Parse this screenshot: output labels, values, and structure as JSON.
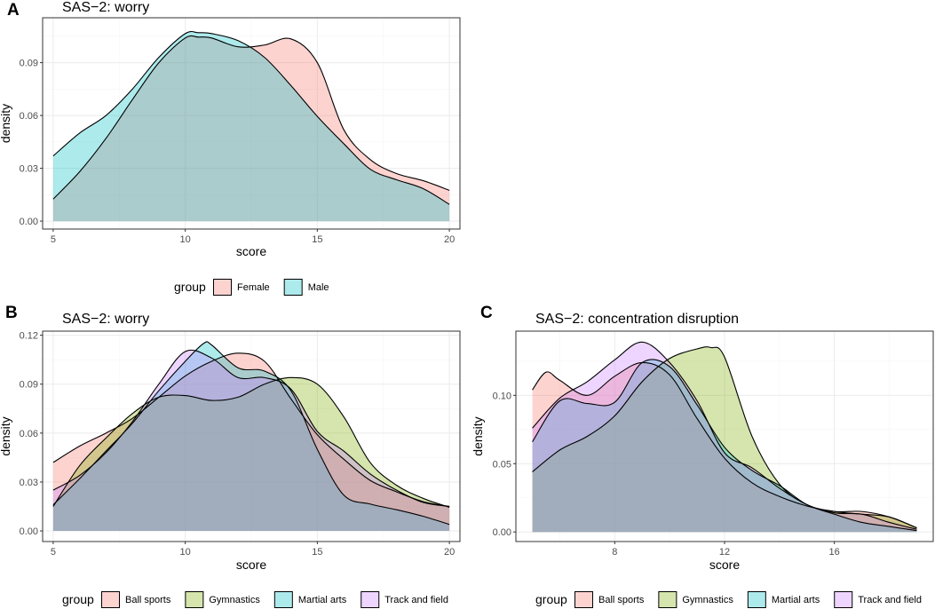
{
  "chart_data": [
    {
      "id": "A",
      "panel_label": "A",
      "type": "area",
      "subtype": "density",
      "title": "SAS−2: worry",
      "xlabel": "score",
      "ylabel": "density",
      "xlim": [
        4.6,
        20.4
      ],
      "ylim": [
        -0.0045,
        0.1155
      ],
      "xticks": [
        5,
        10,
        15,
        20
      ],
      "xtick_labels": [
        "5",
        "10",
        "15",
        "20"
      ],
      "yticks": [
        0,
        0.03,
        0.06,
        0.09
      ],
      "ytick_labels": [
        "0.00",
        "0.03",
        "0.06",
        "0.09"
      ],
      "legend": {
        "title": "group",
        "position": "bottom"
      },
      "series": [
        {
          "name": "Female",
          "color": "#f8766d",
          "x": [
            5,
            6,
            7,
            8,
            9,
            10,
            10.5,
            11,
            12,
            13,
            14,
            15,
            16,
            17,
            18,
            19,
            20
          ],
          "y": [
            0.0125,
            0.028,
            0.047,
            0.069,
            0.09,
            0.104,
            0.1045,
            0.104,
            0.099,
            0.1,
            0.1035,
            0.09,
            0.052,
            0.035,
            0.027,
            0.023,
            0.0175
          ]
        },
        {
          "name": "Male",
          "color": "#00bfc4",
          "x": [
            5,
            6,
            7,
            8,
            9,
            10,
            10.5,
            11,
            12,
            13,
            14,
            15,
            16,
            17,
            18,
            19,
            20
          ],
          "y": [
            0.037,
            0.05,
            0.06,
            0.075,
            0.093,
            0.1065,
            0.107,
            0.1065,
            0.1025,
            0.093,
            0.077,
            0.0595,
            0.044,
            0.0295,
            0.0235,
            0.0185,
            0.0095
          ]
        }
      ]
    },
    {
      "id": "B",
      "panel_label": "B",
      "type": "area",
      "subtype": "density",
      "title": "SAS−2: worry",
      "xlabel": "score",
      "ylabel": "density",
      "xlim": [
        4.6,
        20.4
      ],
      "ylim": [
        -0.0065,
        0.1225
      ],
      "xticks": [
        5,
        10,
        15,
        20
      ],
      "xtick_labels": [
        "5",
        "10",
        "15",
        "20"
      ],
      "yticks": [
        0,
        0.03,
        0.06,
        0.09,
        0.12
      ],
      "ytick_labels": [
        "0.00",
        "0.03",
        "0.06",
        "0.09",
        "0.12"
      ],
      "legend": {
        "title": "group",
        "position": "bottom"
      },
      "series": [
        {
          "name": "Ball sports",
          "color": "#f8766d",
          "x": [
            5,
            6,
            7,
            8,
            9,
            10,
            11,
            12,
            13,
            14,
            15,
            16,
            17,
            18,
            19,
            20
          ],
          "y": [
            0.042,
            0.052,
            0.06,
            0.069,
            0.082,
            0.095,
            0.104,
            0.109,
            0.104,
            0.081,
            0.059,
            0.044,
            0.031,
            0.024,
            0.018,
            0.015
          ]
        },
        {
          "name": "Gymnastics",
          "color": "#7cae00",
          "x": [
            5,
            6,
            7,
            8,
            9,
            10,
            11,
            12,
            13,
            14,
            15,
            16,
            17,
            18,
            19,
            20
          ],
          "y": [
            0.015,
            0.04,
            0.057,
            0.072,
            0.082,
            0.083,
            0.08,
            0.082,
            0.09,
            0.094,
            0.09,
            0.07,
            0.042,
            0.028,
            0.02,
            0.0145
          ]
        },
        {
          "name": "Martial arts",
          "color": "#00bfc4",
          "x": [
            5,
            6,
            7,
            8,
            9,
            10,
            10.7,
            11,
            12,
            13,
            14,
            15,
            16,
            17,
            18,
            19,
            20
          ],
          "y": [
            0.016,
            0.032,
            0.049,
            0.066,
            0.086,
            0.104,
            0.115,
            0.114,
            0.1,
            0.098,
            0.086,
            0.05,
            0.022,
            0.0165,
            0.013,
            0.009,
            0.004
          ]
        },
        {
          "name": "Track and field",
          "color": "#c77cff",
          "x": [
            5,
            6,
            7,
            8,
            9,
            10,
            11,
            12,
            13,
            14,
            15,
            16,
            17,
            18,
            19,
            20
          ],
          "y": [
            0.025,
            0.034,
            0.048,
            0.067,
            0.09,
            0.11,
            0.106,
            0.094,
            0.094,
            0.087,
            0.061,
            0.049,
            0.035,
            0.025,
            0.0175,
            0.015
          ]
        }
      ]
    },
    {
      "id": "C",
      "panel_label": "C",
      "type": "area",
      "subtype": "density",
      "title": "SAS−2: concentration disruption",
      "xlabel": "score",
      "ylabel": "density",
      "xlim": [
        4.4,
        19.6
      ],
      "ylim": [
        -0.007,
        0.147
      ],
      "xticks": [
        8,
        12,
        16
      ],
      "xtick_labels": [
        "8",
        "12",
        "16"
      ],
      "yticks": [
        0,
        0.05,
        0.1
      ],
      "ytick_labels": [
        "0.00",
        "0.05",
        "0.10"
      ],
      "legend": {
        "title": "group",
        "position": "bottom"
      },
      "series": [
        {
          "name": "Ball sports",
          "color": "#f8766d",
          "x": [
            5,
            5.5,
            6,
            7,
            8,
            9,
            10,
            11,
            12,
            13,
            14,
            15,
            16,
            17,
            18,
            19
          ],
          "y": [
            0.104,
            0.117,
            0.111,
            0.1,
            0.114,
            0.124,
            0.115,
            0.083,
            0.054,
            0.036,
            0.026,
            0.019,
            0.015,
            0.015,
            0.011,
            0.003
          ]
        },
        {
          "name": "Gymnastics",
          "color": "#7cae00",
          "x": [
            5,
            6,
            7,
            8,
            9,
            10,
            11,
            11.5,
            12,
            13,
            14,
            15,
            16,
            17,
            18,
            19
          ],
          "y": [
            0.044,
            0.06,
            0.07,
            0.085,
            0.11,
            0.127,
            0.134,
            0.135,
            0.128,
            0.07,
            0.035,
            0.02,
            0.015,
            0.013,
            0.011,
            0.003
          ]
        },
        {
          "name": "Martial arts",
          "color": "#00bfc4",
          "x": [
            5,
            6,
            7,
            8,
            9,
            10,
            11,
            12,
            13,
            14,
            15,
            16,
            17,
            18,
            19
          ],
          "y": [
            0.066,
            0.096,
            0.094,
            0.095,
            0.124,
            0.121,
            0.093,
            0.062,
            0.045,
            0.034,
            0.02,
            0.013,
            0.007,
            0.004,
            0.001
          ]
        },
        {
          "name": "Track and field",
          "color": "#c77cff",
          "x": [
            5,
            6,
            7,
            8,
            9,
            10,
            11,
            12,
            13,
            14,
            15,
            16,
            17,
            18,
            19
          ],
          "y": [
            0.076,
            0.098,
            0.11,
            0.126,
            0.139,
            0.124,
            0.096,
            0.058,
            0.047,
            0.032,
            0.02,
            0.014,
            0.013,
            0.007,
            0.002
          ]
        }
      ]
    }
  ]
}
